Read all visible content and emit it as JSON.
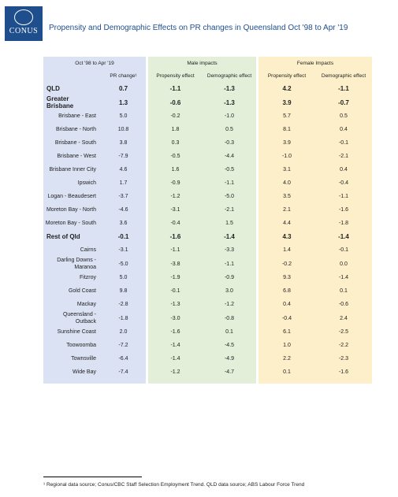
{
  "logo": {
    "text": "CONUS"
  },
  "title": "Propensity and Demographic Effects on PR changes in Queensland Oct '98 to Apr '19",
  "table": {
    "period": "Oct '98 to Apr '19",
    "pr_header": "PR change¹",
    "male_header": "Male impacts",
    "female_header": "Female Impacts",
    "male_columns": [
      "Propensity effect",
      "Demographic effect"
    ],
    "female_columns": [
      "Propensity effect",
      "Demographic effect"
    ],
    "rows": [
      {
        "name": "QLD",
        "bold": true,
        "cells": [
          "0.7",
          "-1.1",
          "-1.3",
          "4.2",
          "-1.1"
        ]
      },
      {
        "name": "Greater Brisbane",
        "bold": true,
        "cells": [
          "1.3",
          "-0.6",
          "-1.3",
          "3.9",
          "-0.7"
        ]
      },
      {
        "name": "Brisbane - East",
        "cells": [
          "5.0",
          "-0.2",
          "-1.0",
          "5.7",
          "0.5"
        ]
      },
      {
        "name": "Brisbane - North",
        "cells": [
          "10.8",
          "1.8",
          "0.5",
          "8.1",
          "0.4"
        ]
      },
      {
        "name": "Brisbane - South",
        "cells": [
          "3.8",
          "0.3",
          "-0.3",
          "3.9",
          "-0.1"
        ]
      },
      {
        "name": "Brisbane - West",
        "cells": [
          "-7.9",
          "-0.5",
          "-4.4",
          "-1.0",
          "-2.1"
        ]
      },
      {
        "name": "Brisbane Inner City",
        "cells": [
          "4.6",
          "1.6",
          "-0.5",
          "3.1",
          "0.4"
        ]
      },
      {
        "name": "Ipswich",
        "cells": [
          "1.7",
          "-0.9",
          "-1.1",
          "4.0",
          "-0.4"
        ]
      },
      {
        "name": "Logan - Beaudesert",
        "cells": [
          "-3.7",
          "-1.2",
          "-5.0",
          "3.5",
          "-1.1"
        ]
      },
      {
        "name": "Moreton Bay - North",
        "cells": [
          "-4.6",
          "-3.1",
          "-2.1",
          "2.1",
          "-1.6"
        ]
      },
      {
        "name": "Moreton Bay - South",
        "cells": [
          "3.6",
          "-0.4",
          "1.5",
          "4.4",
          "-1.8"
        ]
      },
      {
        "name": "Rest of Qld",
        "bold": true,
        "cells": [
          "-0.1",
          "-1.6",
          "-1.4",
          "4.3",
          "-1.4"
        ]
      },
      {
        "name": "Cairns",
        "cells": [
          "-3.1",
          "-1.1",
          "-3.3",
          "1.4",
          "-0.1"
        ]
      },
      {
        "name": "Darling Downs - Maranoa",
        "cells": [
          "-5.0",
          "-3.8",
          "-1.1",
          "-0.2",
          "0.0"
        ]
      },
      {
        "name": "Fitzroy",
        "cells": [
          "5.0",
          "-1.9",
          "-0.9",
          "9.3",
          "-1.4"
        ]
      },
      {
        "name": "Gold Coast",
        "cells": [
          "9.8",
          "-0.1",
          "3.0",
          "6.8",
          "0.1"
        ]
      },
      {
        "name": "Mackay",
        "cells": [
          "-2.8",
          "-1.3",
          "-1.2",
          "0.4",
          "-0.6"
        ]
      },
      {
        "name": "Queensland - Outback",
        "cells": [
          "-1.8",
          "-3.0",
          "-0.8",
          "-0.4",
          "2.4"
        ]
      },
      {
        "name": "Sunshine Coast",
        "cells": [
          "2.0",
          "-1.6",
          "0.1",
          "6.1",
          "-2.5"
        ]
      },
      {
        "name": "Toowoomba",
        "cells": [
          "-7.2",
          "-1.4",
          "-4.5",
          "1.0",
          "-2.2"
        ]
      },
      {
        "name": "Townsville",
        "cells": [
          "-6.4",
          "-1.4",
          "-4.9",
          "2.2",
          "-2.3"
        ]
      },
      {
        "name": "Wide Bay",
        "cells": [
          "-7.4",
          "-1.2",
          "-4.7",
          "0.1",
          "-1.6"
        ]
      }
    ]
  },
  "footnote": "¹ Regional data source; Conus/CBC Staff Selection Employment Trend. QLD data source; ABS Labour Force Trend"
}
